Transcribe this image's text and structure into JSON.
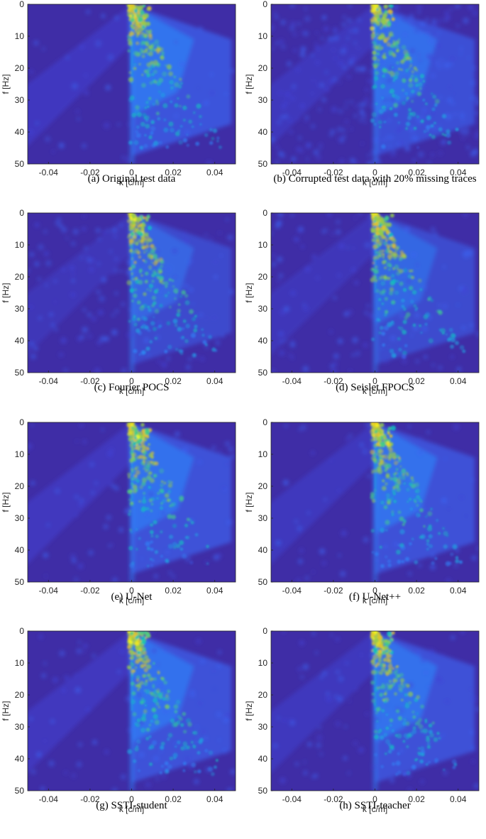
{
  "figure": {
    "panels": [
      {
        "caption": "(a) Original test data",
        "variant": "original"
      },
      {
        "caption": "(b) Corrupted test data with 20% missing traces",
        "variant": "corrupted"
      },
      {
        "caption": "(c) Fourier POCS",
        "variant": "pocs"
      },
      {
        "caption": "(d) Seislet FPOCS",
        "variant": "fpocs"
      },
      {
        "caption": "(e) U-Net",
        "variant": "unet"
      },
      {
        "caption": "(f) U-Net++",
        "variant": "unetpp"
      },
      {
        "caption": "(g) SSTI-student",
        "variant": "student"
      },
      {
        "caption": "(h) SSTI-teacher",
        "variant": "teacher"
      }
    ]
  },
  "chart_data": {
    "type": "heatmap",
    "xlabel": "k [c/m]",
    "ylabel": "f [Hz]",
    "xlim": [
      -0.05,
      0.05
    ],
    "ylim": [
      0,
      50
    ],
    "y_reversed": true,
    "xticks": [
      -0.04,
      -0.02,
      0,
      0.02,
      0.04
    ],
    "xtick_labels": [
      "-0.04",
      "-0.02",
      "0",
      "0.02",
      "0.04"
    ],
    "yticks": [
      0,
      10,
      20,
      30,
      40,
      50
    ],
    "ytick_labels": [
      "0",
      "10",
      "20",
      "30",
      "40",
      "50"
    ],
    "colormap": "parula",
    "colormap_stops": [
      "#3e26a8",
      "#4143d6",
      "#3c63f0",
      "#2e85f8",
      "#1ca5e2",
      "#10bfc0",
      "#41cc8c",
      "#93cb4c",
      "#e2c22a",
      "#f9fb15"
    ],
    "background_color": "#3f2da6",
    "grid": false,
    "legend": "none"
  }
}
